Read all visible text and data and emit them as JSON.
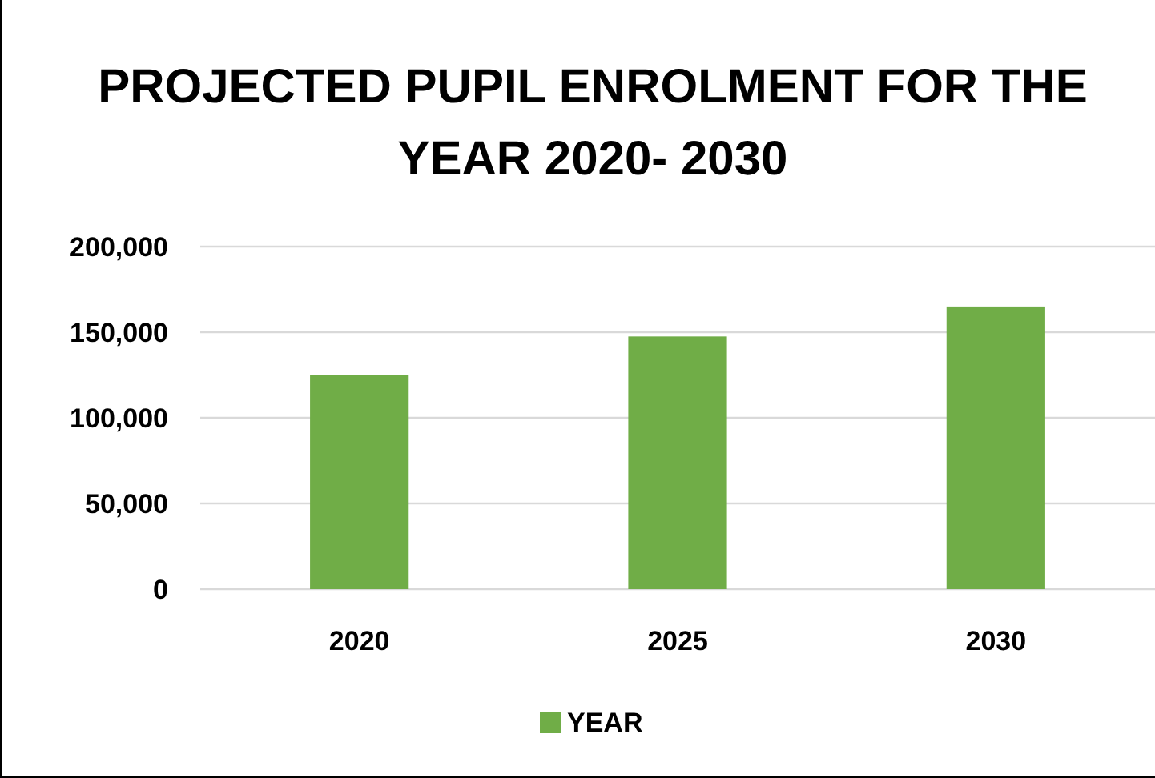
{
  "chart_data": {
    "type": "bar",
    "title": "PROJECTED PUPIL ENROLMENT FOR THE YEAR 2020- 2030",
    "categories": [
      "2020",
      "2025",
      "2030"
    ],
    "series": [
      {
        "name": "YEAR",
        "color": "#70ad47",
        "values": [
          125000,
          147500,
          165000
        ]
      }
    ],
    "ylim": [
      0,
      200000
    ],
    "yticks": [
      {
        "value": 0,
        "label": "0"
      },
      {
        "value": 50000,
        "label": "50,000"
      },
      {
        "value": 100000,
        "label": "100,000"
      },
      {
        "value": 150000,
        "label": "150,000"
      },
      {
        "value": 200000,
        "label": "200,000"
      }
    ],
    "grid": "y",
    "legend": "bottom"
  }
}
